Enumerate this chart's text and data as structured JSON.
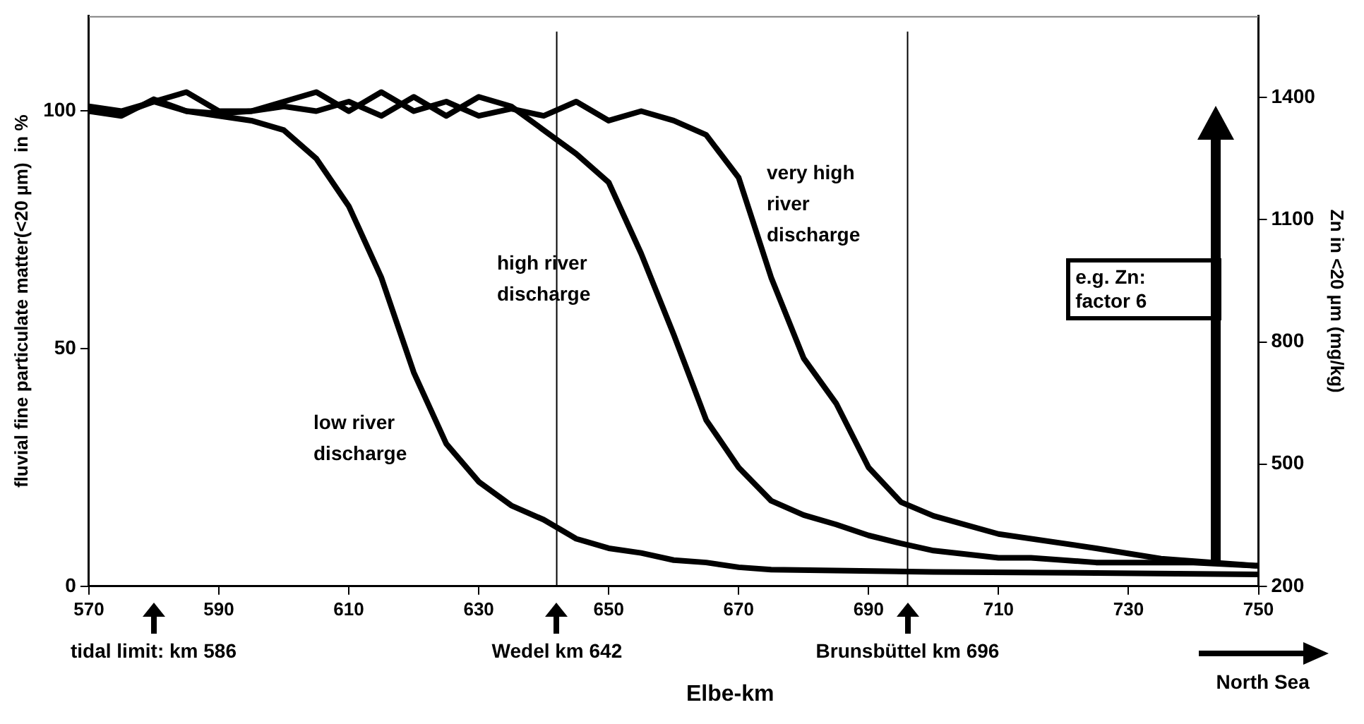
{
  "chart_data": {
    "type": "line",
    "xlabel": "Elbe-km",
    "ylabel": "fluvial fine particulate matter(<20 µm)  in %",
    "y2label": "Zn in <20 µm (mg/kg)",
    "xlim": [
      570,
      750
    ],
    "xticks": [
      570,
      590,
      610,
      630,
      650,
      670,
      690,
      710,
      730,
      750
    ],
    "ylim": [
      0,
      120
    ],
    "yticks": [
      0,
      50,
      100
    ],
    "y2lim": [
      200,
      1600
    ],
    "y2ticks": [
      200,
      500,
      800,
      1100,
      1400
    ],
    "grid": false,
    "legend": false,
    "marker": "none",
    "line_style": "solid",
    "series": [
      {
        "name": "low river discharge",
        "color": "#000000",
        "x": [
          570,
          575,
          580,
          585,
          590,
          595,
          600,
          605,
          610,
          615,
          620,
          625,
          630,
          635,
          640,
          645,
          650,
          655,
          660,
          665,
          670,
          675,
          700,
          725,
          750
        ],
        "values": [
          100,
          99,
          102.5,
          100,
          99,
          98,
          96,
          90,
          80,
          65,
          45,
          30,
          22,
          17,
          14,
          10,
          8,
          7,
          5.5,
          5,
          4,
          3.5,
          3,
          2.8,
          2.5
        ]
      },
      {
        "name": "high river discharge",
        "color": "#000000",
        "x": [
          570,
          575,
          580,
          585,
          590,
          595,
          600,
          605,
          610,
          615,
          620,
          625,
          630,
          635,
          640,
          645,
          650,
          655,
          660,
          665,
          670,
          675,
          680,
          685,
          690,
          695,
          700,
          710,
          715,
          725,
          740,
          750
        ],
        "values": [
          101,
          100,
          102,
          100,
          99.5,
          100,
          101,
          100,
          102,
          99,
          103,
          99,
          103,
          101,
          96,
          91,
          85,
          70,
          53,
          35,
          25,
          18,
          15,
          13,
          10.7,
          9,
          7.5,
          6,
          6,
          5,
          5,
          4.3
        ]
      },
      {
        "name": "very high river discharge",
        "color": "#000000",
        "x": [
          570,
          575,
          580,
          585,
          590,
          595,
          600,
          605,
          610,
          615,
          620,
          625,
          630,
          635,
          640,
          645,
          650,
          655,
          660,
          665,
          670,
          675,
          680,
          685,
          690,
          695,
          700,
          710,
          725,
          735,
          743,
          750
        ],
        "values": [
          100,
          99.5,
          102,
          104,
          100,
          100,
          102,
          104,
          100,
          104,
          100,
          102,
          99,
          100.5,
          99,
          102,
          98,
          100,
          98,
          95,
          86,
          65,
          48,
          38.5,
          25,
          17.7,
          14.8,
          11,
          8,
          5.8,
          5,
          4.3
        ]
      }
    ],
    "ref_lines": [
      {
        "axis": "x",
        "value": 642,
        "color": "#000000"
      },
      {
        "axis": "x",
        "value": 696,
        "color": "#000000"
      }
    ],
    "annotations": [
      "tidal limit: km 586",
      "Wedel km 642",
      "Brunsbüttel km 696",
      "North Sea",
      "e.g. Zn: factor 6"
    ]
  }
}
